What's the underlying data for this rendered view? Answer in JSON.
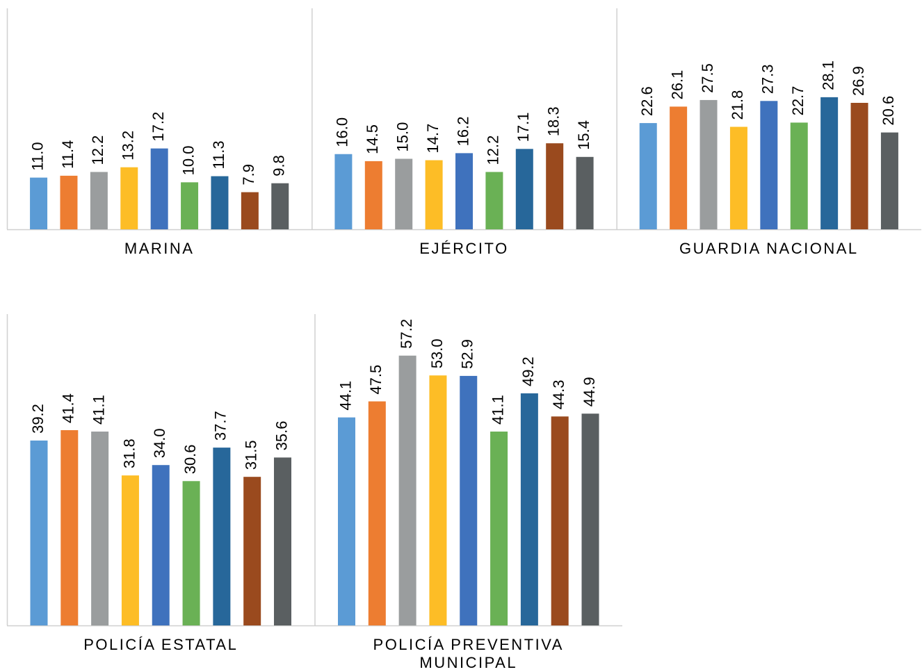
{
  "chart_data": [
    {
      "type": "bar",
      "categories": [
        "MARINA",
        "EJÉRCITO",
        "GUARDIA NACIONAL"
      ],
      "ylim": [
        0,
        47
      ],
      "series": [
        {
          "color": "#5b9bd5",
          "values": [
            11.0,
            16.0,
            22.6
          ],
          "value_labels": [
            "11.0",
            "16.0",
            "22.6"
          ]
        },
        {
          "color": "#ed7d31",
          "values": [
            11.4,
            14.5,
            26.1
          ],
          "value_labels": [
            "11.4",
            "14.5",
            "26.1"
          ]
        },
        {
          "color": "#9a9d9e",
          "values": [
            12.2,
            15.0,
            27.5
          ],
          "value_labels": [
            "12.2",
            "15.0",
            "27.5"
          ]
        },
        {
          "color": "#fdbd26",
          "values": [
            13.2,
            14.7,
            21.8
          ],
          "value_labels": [
            "13.2",
            "14.7",
            "21.8"
          ]
        },
        {
          "color": "#3f72bd",
          "values": [
            17.2,
            16.2,
            27.3
          ],
          "value_labels": [
            "17.2",
            "16.2",
            "27.3"
          ]
        },
        {
          "color": "#6ab155",
          "values": [
            10.0,
            12.2,
            22.7
          ],
          "value_labels": [
            "10.0",
            "12.2",
            "22.7"
          ]
        },
        {
          "color": "#27679a",
          "values": [
            11.3,
            17.1,
            28.1
          ],
          "value_labels": [
            "11.3",
            "17.1",
            "28.1"
          ]
        },
        {
          "color": "#9a4a1e",
          "values": [
            7.9,
            18.3,
            26.9
          ],
          "value_labels": [
            "7.9",
            "18.3",
            "26.9"
          ]
        },
        {
          "color": "#5a5f61",
          "values": [
            9.8,
            15.4,
            20.6
          ],
          "value_labels": [
            "9.8",
            "15.4",
            "20.6"
          ]
        }
      ]
    },
    {
      "type": "bar",
      "categories": [
        "POLICÍA ESTATAL",
        "POLICÍA PREVENTIVA MUNICIPAL"
      ],
      "ylim": [
        0,
        66
      ],
      "series": [
        {
          "color": "#5b9bd5",
          "values": [
            39.2,
            44.1
          ],
          "value_labels": [
            "39.2",
            "44.1"
          ]
        },
        {
          "color": "#ed7d31",
          "values": [
            41.4,
            47.5
          ],
          "value_labels": [
            "41.4",
            "47.5"
          ]
        },
        {
          "color": "#9a9d9e",
          "values": [
            41.1,
            57.2
          ],
          "value_labels": [
            "41.1",
            "57.2"
          ]
        },
        {
          "color": "#fdbd26",
          "values": [
            31.8,
            53.0
          ],
          "value_labels": [
            "31.8",
            "53.0"
          ]
        },
        {
          "color": "#3f72bd",
          "values": [
            34.0,
            52.9
          ],
          "value_labels": [
            "34.0",
            "52.9"
          ]
        },
        {
          "color": "#6ab155",
          "values": [
            30.6,
            41.1
          ],
          "value_labels": [
            "30.6",
            "41.1"
          ]
        },
        {
          "color": "#27679a",
          "values": [
            37.7,
            49.2
          ],
          "value_labels": [
            "37.7",
            "49.2"
          ]
        },
        {
          "color": "#9a4a1e",
          "values": [
            31.5,
            44.3
          ],
          "value_labels": [
            "31.5",
            "44.3"
          ]
        },
        {
          "color": "#5a5f61",
          "values": [
            35.6,
            44.9
          ],
          "value_labels": [
            "35.6",
            "44.9"
          ]
        }
      ]
    }
  ]
}
